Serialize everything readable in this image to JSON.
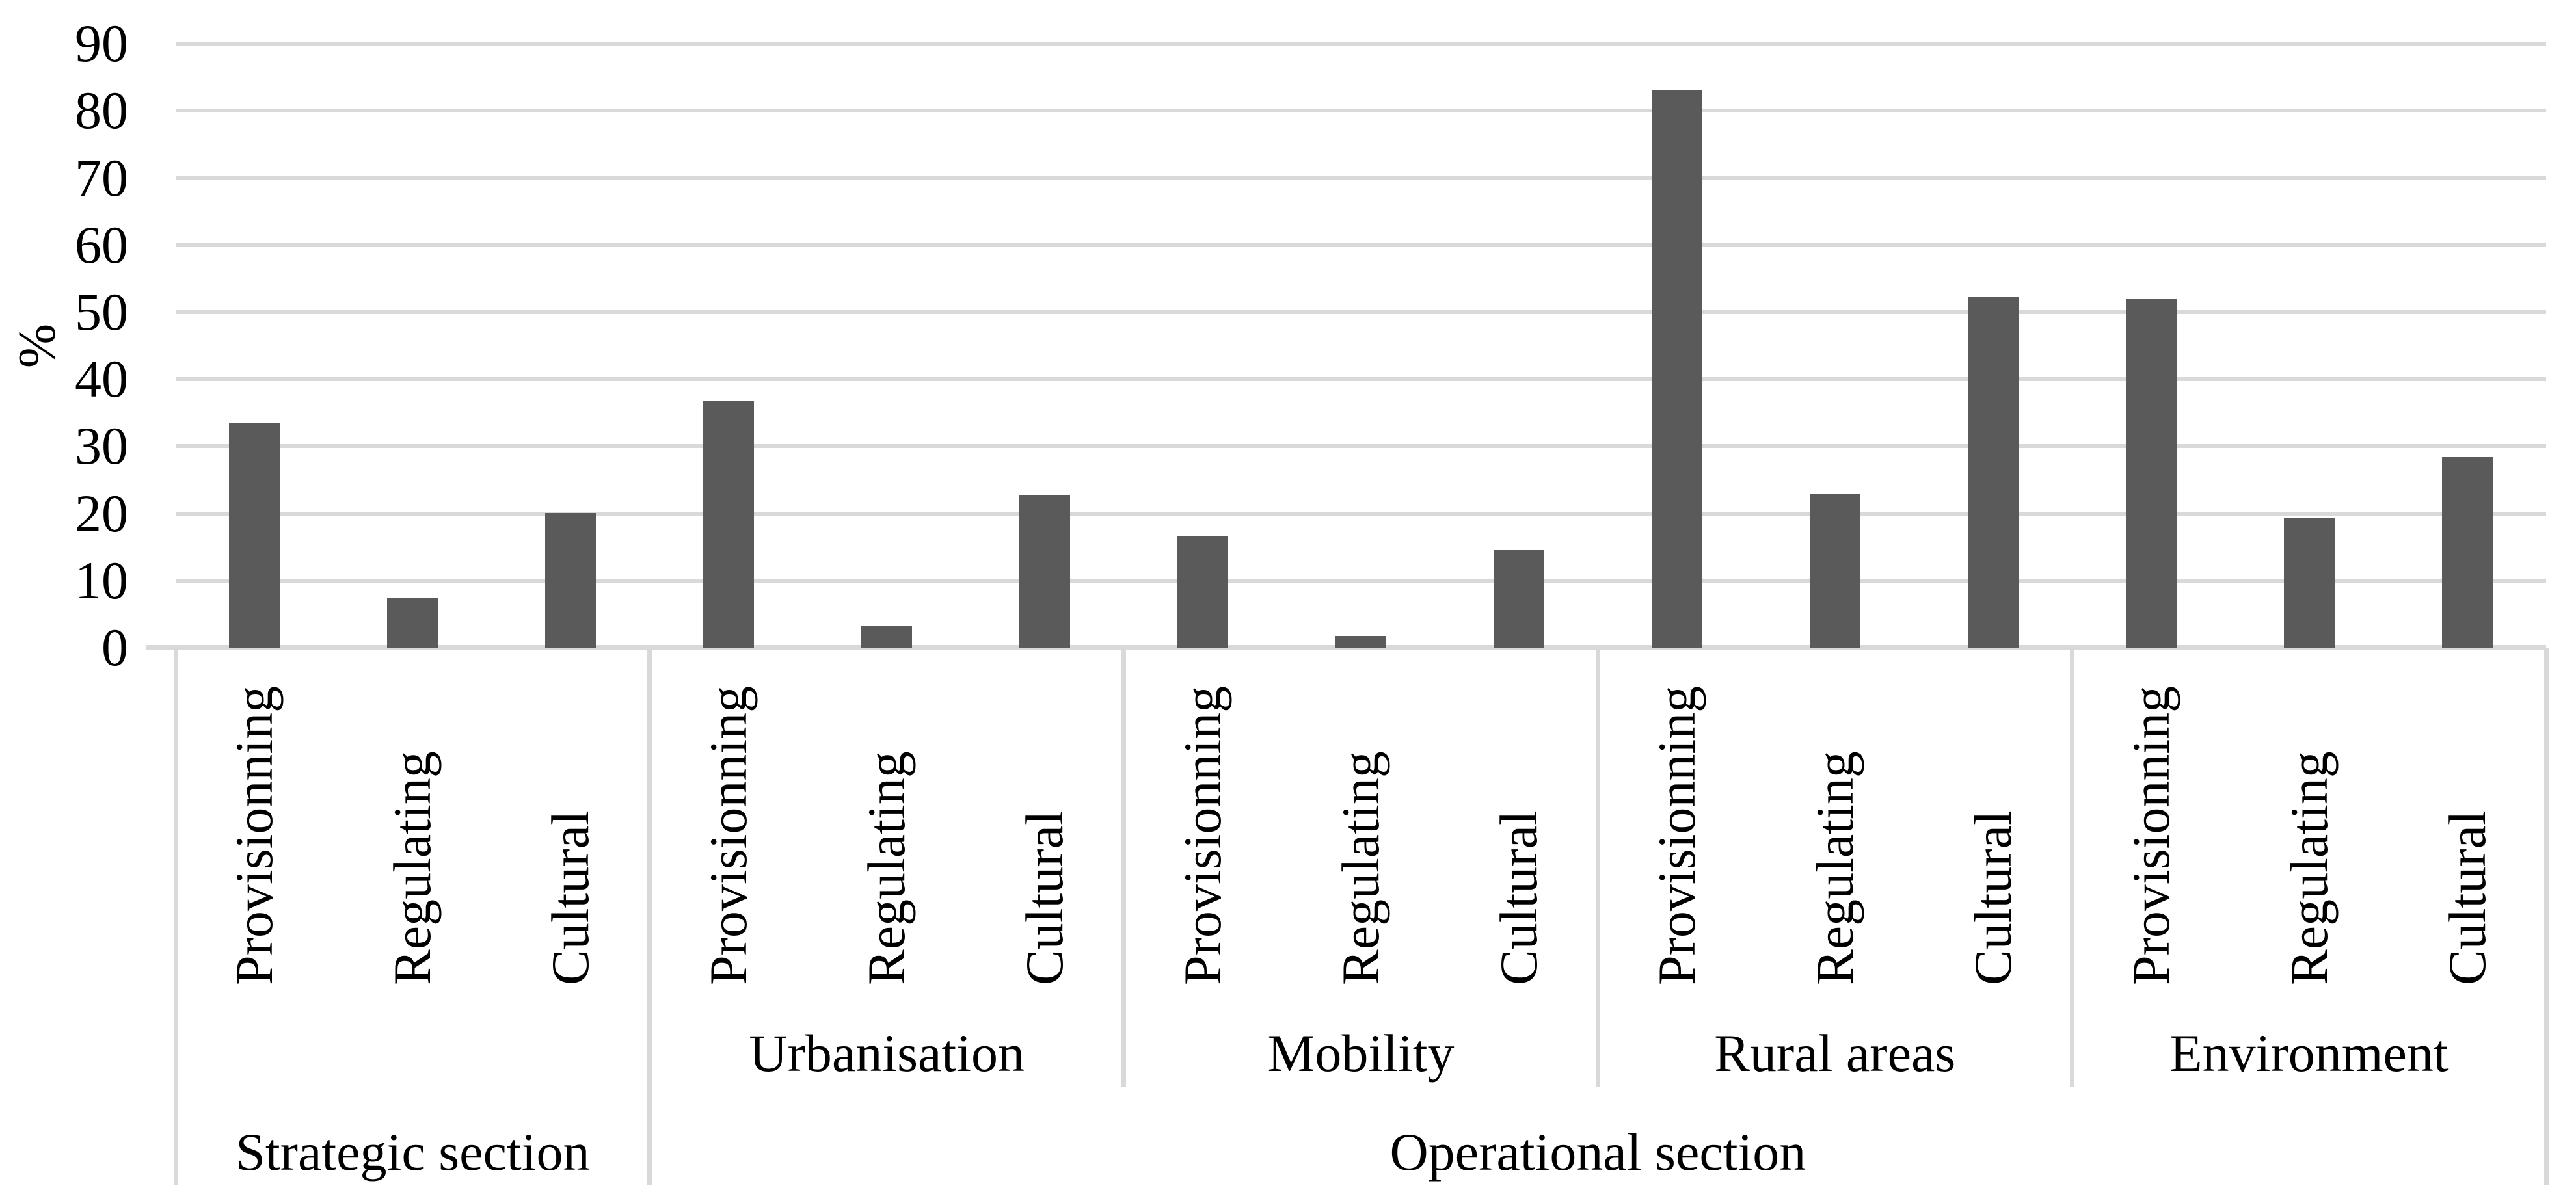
{
  "chart_data": {
    "type": "bar",
    "title": "",
    "ylabel": "%",
    "xlabel": "",
    "ylim": [
      0,
      90
    ],
    "yticks": [
      0,
      10,
      20,
      30,
      40,
      50,
      60,
      70,
      80,
      90
    ],
    "grid": true,
    "legend_position": "none",
    "bar_color": "#5A5A5A",
    "gridline_color": "#D9D9D9",
    "axis_text_color": "#000000",
    "background_color": "#FFFFFF",
    "sections": [
      {
        "label": "Strategic section",
        "groups": [
          {
            "label": "",
            "categories": [
              "Provisionning",
              "Regulating",
              "Cultural"
            ],
            "values": [
              33.5,
              7.4,
              20.1
            ]
          }
        ]
      },
      {
        "label": "Operational section",
        "groups": [
          {
            "label": "Urbanisation",
            "categories": [
              "Provisionning",
              "Regulating",
              "Cultural"
            ],
            "values": [
              36.7,
              3.2,
              22.8
            ]
          },
          {
            "label": "Mobility",
            "categories": [
              "Provisionning",
              "Regulating",
              "Cultural"
            ],
            "values": [
              16.6,
              1.7,
              14.5
            ]
          },
          {
            "label": "Rural areas",
            "categories": [
              "Provisionning",
              "Regulating",
              "Cultural"
            ],
            "values": [
              83.0,
              22.9,
              52.3
            ]
          },
          {
            "label": "Environment",
            "categories": [
              "Provisionning",
              "Regulating",
              "Cultural"
            ],
            "values": [
              51.9,
              19.3,
              28.4
            ]
          }
        ]
      }
    ]
  }
}
